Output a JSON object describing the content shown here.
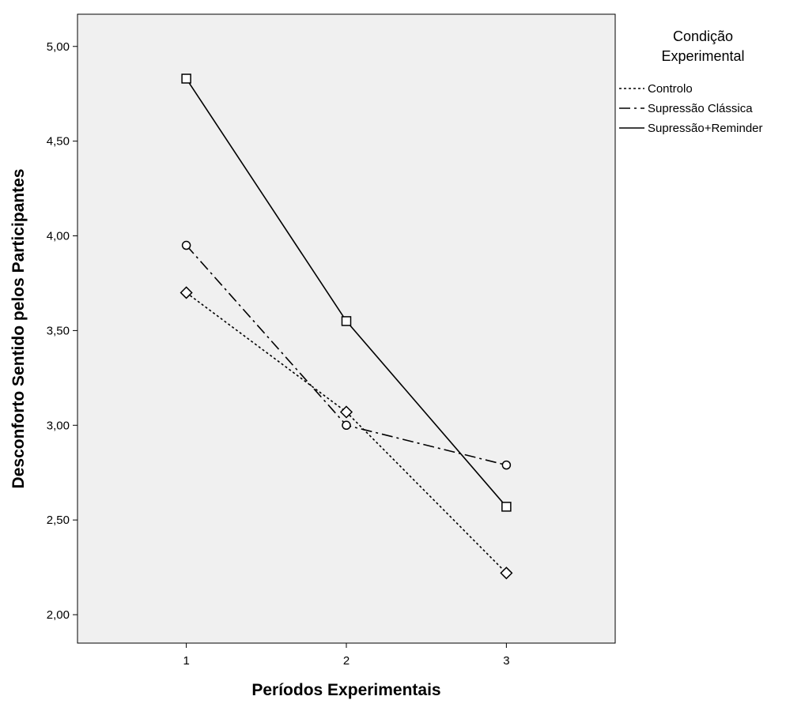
{
  "chart_data": {
    "type": "line",
    "title": "",
    "xlabel": "Períodos Experimentais",
    "ylabel": "Desconforto Sentido pelos Participantes",
    "categories": [
      "1",
      "2",
      "3"
    ],
    "x": [
      1,
      2,
      3
    ],
    "xlim": [
      0.32,
      3.68
    ],
    "ylim": [
      1.85,
      5.17
    ],
    "yticks": [
      2.0,
      2.5,
      3.0,
      3.5,
      4.0,
      4.5,
      5.0
    ],
    "ytick_labels": [
      "2,00",
      "2,50",
      "3,00",
      "3,50",
      "4,00",
      "4,50",
      "5,00"
    ],
    "grid": false,
    "legend": {
      "title_lines": [
        "Condição",
        "Experimental"
      ],
      "placement": "outside-top-right"
    },
    "series": [
      {
        "name": "Controlo",
        "values": [
          3.7,
          3.07,
          2.22
        ],
        "dash": "dotted",
        "marker": "diamond",
        "color": "#000000"
      },
      {
        "name": "Supressão Clássica",
        "values": [
          3.95,
          3.0,
          2.79
        ],
        "dash": "dashdot",
        "marker": "circle",
        "color": "#000000"
      },
      {
        "name": "Supressão+Reminder",
        "values": [
          4.83,
          3.55,
          2.57
        ],
        "dash": "solid",
        "marker": "square",
        "color": "#000000"
      }
    ],
    "plot_background": "#f0f0f0"
  }
}
